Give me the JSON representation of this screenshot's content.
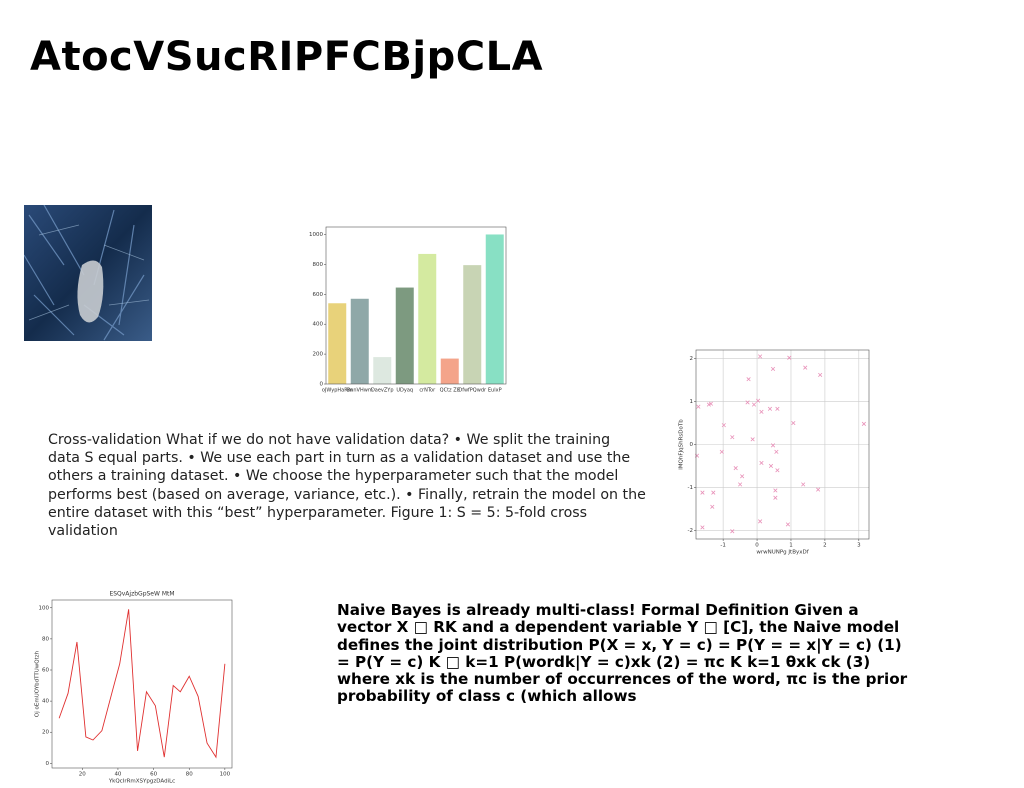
{
  "title": "AtocVSucRIPFCBjpCLA",
  "paragraph_1": "Cross-validation What if we do not have validation data? • We split the training data S equal parts. • We use each part in turn as a validation dataset and use the others a training dataset. • We choose the hyperparameter such that the model performs best (based on average, variance, etc.). • Finally, retrain the model on the entire dataset with this “best” hyperparameter. Figure 1: S = 5: 5-fold cross validation",
  "paragraph_2": "Naive Bayes is already multi-class! Formal Definition Given a vector X □ RK and a dependent variable Y □ [C], the Naive model defines the joint distribution P(X = x, Y = c) = P(Y = = x|Y = c) (1) = P(Y = c) K □ k=1 P(wordk|Y = c)xk (2) = πc K k=1 θxk ck (3) where xk is the number of occurrences of the word, πc is the prior probability of class c (which allows",
  "chart_data": [
    {
      "type": "bar",
      "categories": [
        "oJWypHaRm",
        "BnnVHwm",
        "DaevZYp",
        "UDyaq",
        "crNTor",
        "QCtz Z8",
        "DfwfPQwdr",
        "EulxP"
      ],
      "values": [
        540,
        570,
        180,
        645,
        870,
        170,
        795,
        1000
      ],
      "colors": [
        "#e8d27a",
        "#8fa8a8",
        "#dde8e0",
        "#7d9a80",
        "#d4eaa0",
        "#f4a48a",
        "#c8d4b4",
        "#88e0c4"
      ],
      "ylim": [
        0,
        1050
      ],
      "yticks": [
        0,
        200,
        400,
        600,
        800,
        1000
      ]
    },
    {
      "type": "scatter",
      "x_label": "wrwNUNPg JtByxDf",
      "y_label": "lMQhFJqShRsDoTb",
      "color": "#e890b8",
      "grid": true,
      "x": [
        -1.73,
        -1.36,
        -1.42,
        -0.25,
        0.09,
        0.47,
        0.95,
        1.42,
        1.86,
        -0.28,
        -0.09,
        0.03,
        0.13,
        0.38,
        0.6,
        1.07,
        3.15,
        -0.98,
        -0.73,
        -0.13,
        0.47,
        0.57,
        -1.77,
        -1.04,
        -0.63,
        0.13,
        0.41,
        0.6,
        -0.44,
        -0.5,
        1.36,
        1.8,
        -1.61,
        -1.29,
        0.54,
        0.54,
        -1.32,
        -0.73,
        0.09,
        0.91,
        -1.61
      ],
      "values": [
        0.88,
        0.95,
        0.93,
        1.52,
        2.05,
        1.76,
        2.02,
        1.79,
        1.62,
        0.98,
        0.93,
        1.02,
        0.76,
        0.83,
        0.83,
        0.5,
        0.48,
        0.45,
        0.17,
        0.12,
        -0.02,
        -0.17,
        -0.26,
        -0.17,
        -0.55,
        -0.43,
        -0.5,
        -0.6,
        -0.74,
        -0.93,
        -0.93,
        -1.05,
        -1.12,
        -1.12,
        -1.07,
        -1.24,
        -1.45,
        -2.02,
        -1.79,
        -1.86,
        -1.93
      ],
      "xlim": [
        -1.8,
        3.3
      ],
      "xticks": [
        -1,
        0,
        1,
        2,
        3
      ],
      "ylim": [
        -2.2,
        2.2
      ],
      "yticks": [
        -2,
        -1,
        0,
        1,
        2
      ]
    },
    {
      "type": "line",
      "title": "ESQvAjzbGpSeW MtM",
      "x_label": "YkQcIrRmXSYpgzDAdiLc",
      "y_label": "Oj oEmUOYbdTTUwQtzh",
      "color": "#e03030",
      "x": [
        7,
        12,
        17,
        22,
        26,
        31,
        37,
        41,
        46,
        51,
        56,
        61,
        66,
        71,
        75,
        80,
        85,
        90,
        95,
        100
      ],
      "values": [
        29,
        45,
        78,
        17,
        15,
        21,
        47,
        64,
        99,
        8,
        46,
        37,
        4,
        50,
        46,
        56,
        43,
        13,
        4,
        64
      ],
      "xlim": [
        3,
        104
      ],
      "xticks": [
        20,
        40,
        60,
        80,
        100
      ],
      "ylim": [
        -3,
        105
      ],
      "yticks": [
        0,
        20,
        40,
        60,
        80,
        100
      ]
    }
  ]
}
